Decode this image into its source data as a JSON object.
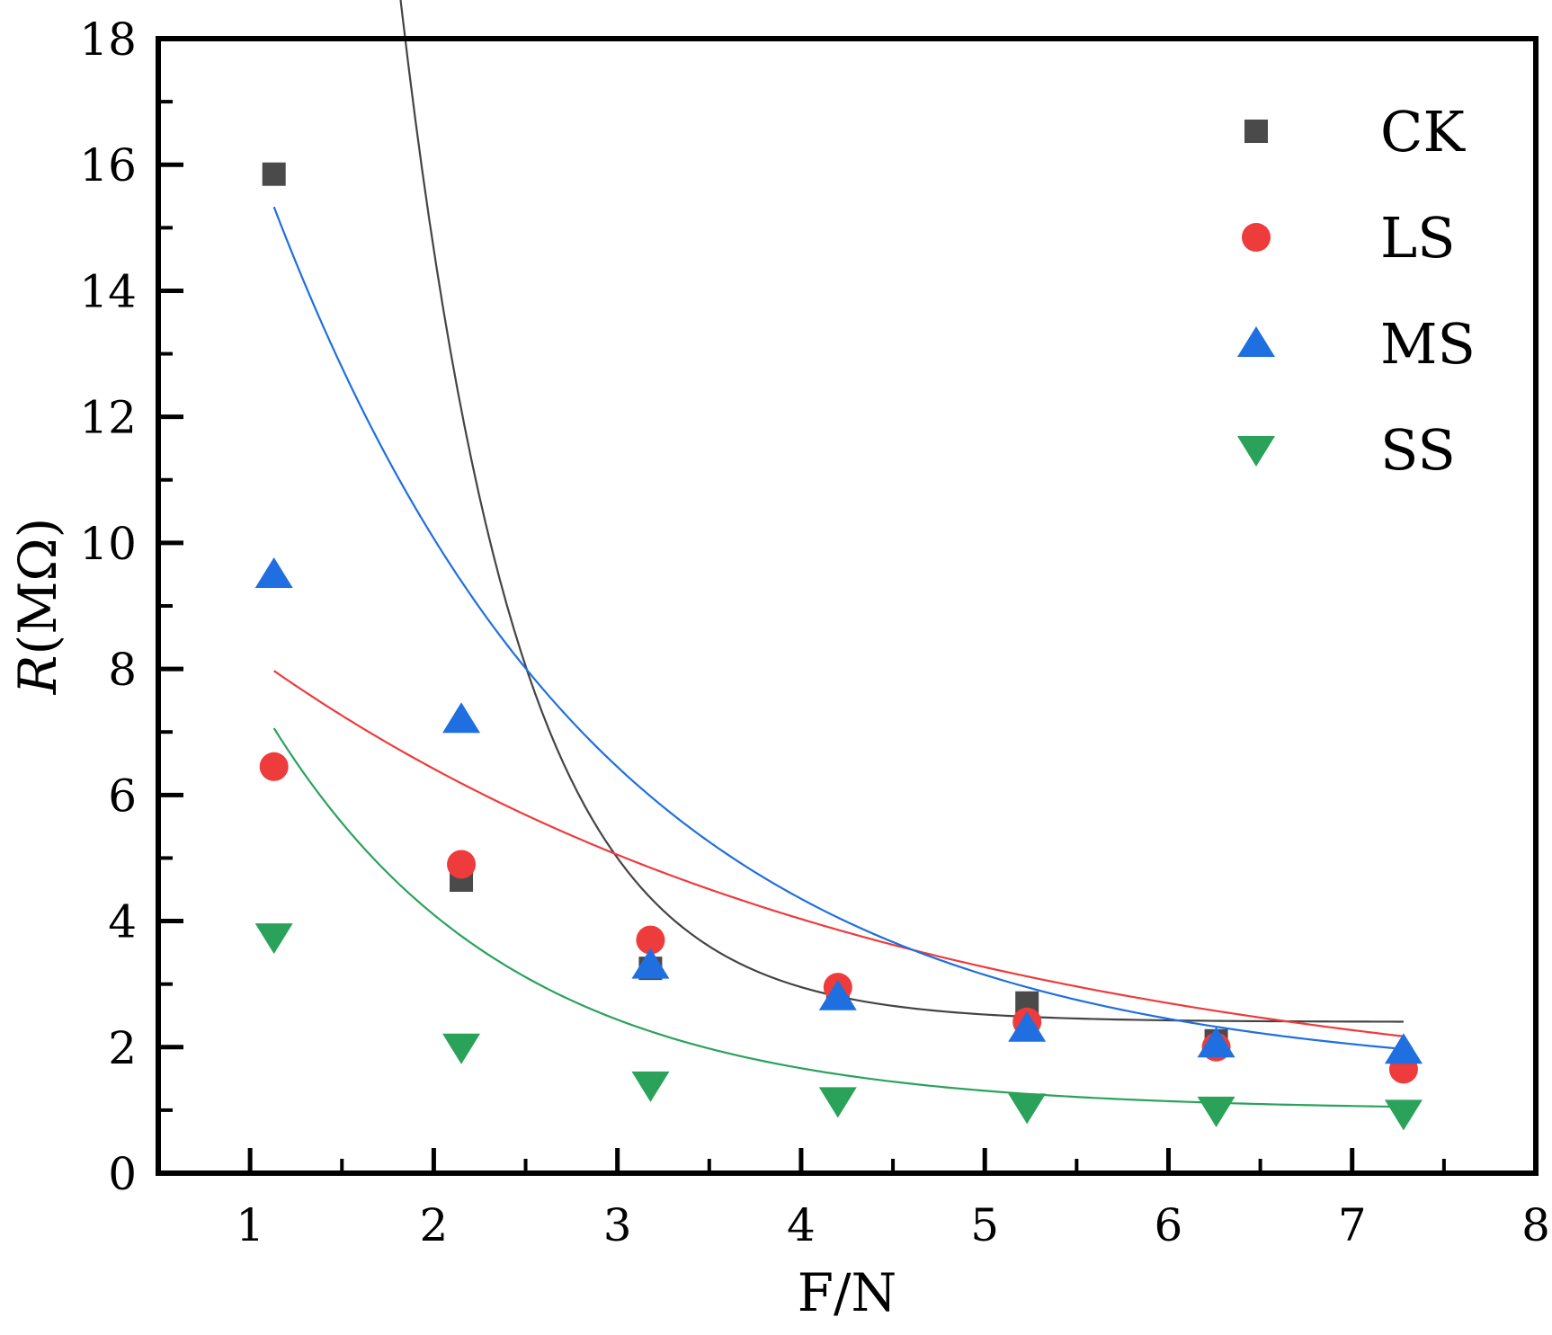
{
  "chart_data": {
    "type": "scatter",
    "title": "",
    "xlabel": "F/N",
    "ylabel_italic": "R",
    "ylabel_unit": "(MΩ)",
    "xlim": [
      0.5,
      8
    ],
    "ylim": [
      0,
      18
    ],
    "xticks": [
      1,
      2,
      3,
      4,
      5,
      6,
      7,
      8
    ],
    "yticks": [
      0,
      2,
      4,
      6,
      8,
      10,
      12,
      14,
      16,
      18
    ],
    "grid": false,
    "legend_position": "top-right",
    "x": [
      1.13,
      2.15,
      3.18,
      4.2,
      5.23,
      6.26,
      7.28
    ],
    "series": [
      {
        "name": "CK",
        "marker": "square",
        "color": "#4a4a4a",
        "line_color": "#444444",
        "values": [
          15.85,
          4.65,
          3.25,
          2.85,
          2.7,
          2.1,
          1.7
        ],
        "fit": {
          "A": 47.2,
          "k": 1.55,
          "y0": 2.4
        }
      },
      {
        "name": "LS",
        "marker": "circle",
        "color": "#ee3b3b",
        "line_color": "#ee3b3b",
        "values": [
          6.45,
          4.9,
          3.7,
          2.95,
          2.4,
          2.0,
          1.65
        ],
        "fit": {
          "A": 6.97,
          "k": 0.29,
          "y0": 1.0
        }
      },
      {
        "name": "MS",
        "marker": "triangle-up",
        "color": "#1f6fe0",
        "line_color": "#1f6fe0",
        "values": [
          9.5,
          7.2,
          3.3,
          2.8,
          2.3,
          2.05,
          1.95
        ],
        "fit": {
          "A": 13.83,
          "k": 0.55,
          "y0": 1.5
        }
      },
      {
        "name": "SS",
        "marker": "triangle-down",
        "color": "#2aa25a",
        "line_color": "#2aa25a",
        "values": [
          3.75,
          2.0,
          1.4,
          1.15,
          1.05,
          1.0,
          0.95
        ],
        "fit": {
          "A": 6.06,
          "k": 0.77,
          "y0": 1.0
        }
      }
    ]
  }
}
